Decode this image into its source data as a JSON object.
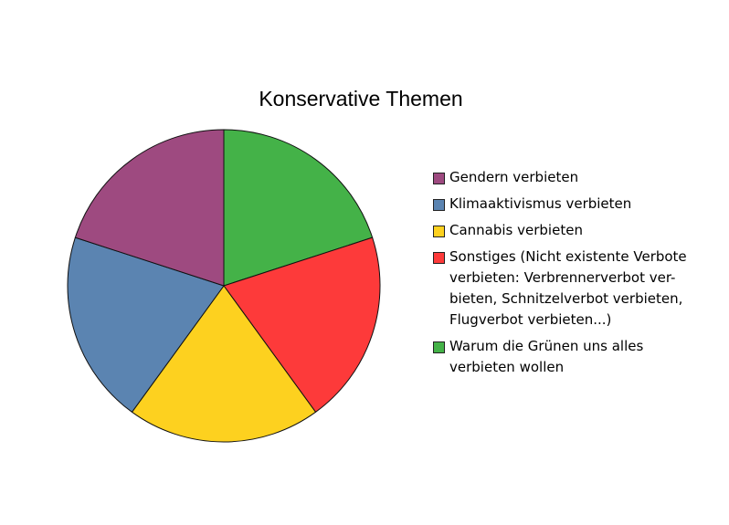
{
  "chart_data": {
    "type": "pie",
    "title": "Konservative Themen",
    "slices": [
      {
        "label": "Gendern verbieten",
        "value": 20,
        "color": "#9e4a80"
      },
      {
        "label": "Klimaaktivismus verbieten",
        "value": 20,
        "color": "#5b84b1"
      },
      {
        "label": "Cannabis verbieten",
        "value": 20,
        "color": "#fdd11f"
      },
      {
        "label": "Sonstiges (Nicht existente Verbote verbieten: Verbrennerverbot ver-\nbieten, Schnitzelverbot verbieten, Flugverbot verbieten...)",
        "value": 20,
        "color": "#fd3a3a"
      },
      {
        "label": "Warum die Grünen uns alles verbieten wollen",
        "value": 20,
        "color": "#44b248"
      }
    ],
    "legend": "right"
  }
}
